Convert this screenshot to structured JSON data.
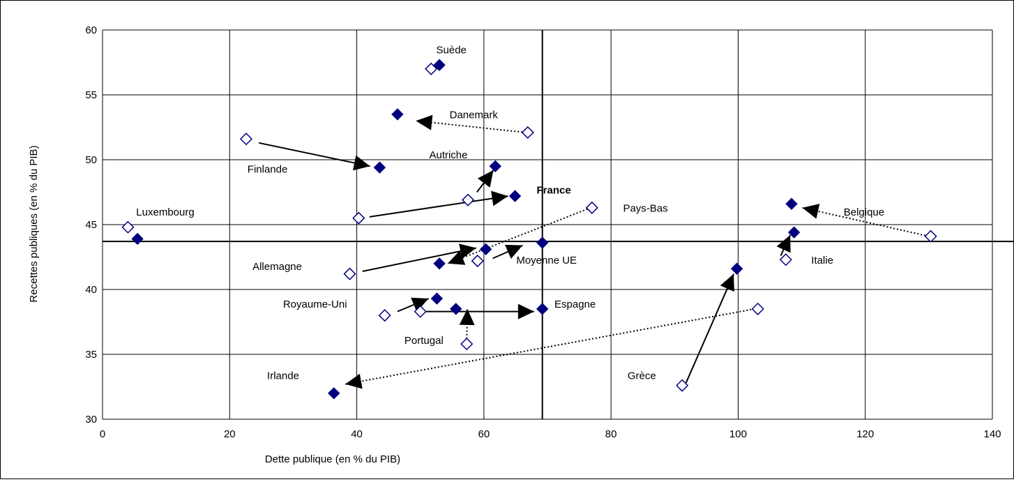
{
  "chart_data": {
    "type": "scatter",
    "title": "",
    "xlabel": "Dette publique (en % du PIB)",
    "ylabel": "Recettes publiques (en % du PIB)",
    "xlim": [
      0,
      140
    ],
    "ylim": [
      30,
      60
    ],
    "xticks": [
      0,
      20,
      40,
      60,
      80,
      100,
      120,
      140
    ],
    "yticks": [
      30,
      35,
      40,
      45,
      50,
      55,
      60
    ],
    "grid": true,
    "legend": "none",
    "reference_lines": {
      "x": 69.2,
      "y": 43.7
    },
    "marker_colors": {
      "filled": "#00007f",
      "open_fill": "#ffffff",
      "open_stroke": "#00007f"
    },
    "series": [
      {
        "marker": "open-diamond",
        "points": [
          {
            "x": 51.7,
            "y": 57.0
          },
          {
            "x": 66.9,
            "y": 52.1
          },
          {
            "x": 22.6,
            "y": 51.6
          },
          {
            "x": 57.5,
            "y": 46.9
          },
          {
            "x": 40.3,
            "y": 45.5
          },
          {
            "x": 77.0,
            "y": 46.3
          },
          {
            "x": 4.0,
            "y": 44.8
          },
          {
            "x": 130.3,
            "y": 44.1
          },
          {
            "x": 107.5,
            "y": 42.3
          },
          {
            "x": 38.9,
            "y": 41.2
          },
          {
            "x": 59.0,
            "y": 42.2
          },
          {
            "x": 50.0,
            "y": 38.3
          },
          {
            "x": 44.4,
            "y": 38.0
          },
          {
            "x": 57.3,
            "y": 35.8
          },
          {
            "x": 103.1,
            "y": 38.5
          },
          {
            "x": 91.2,
            "y": 32.6
          }
        ]
      },
      {
        "marker": "filled-diamond",
        "points": [
          {
            "x": 53.0,
            "y": 57.3
          },
          {
            "x": 46.4,
            "y": 53.5
          },
          {
            "x": 43.6,
            "y": 49.4
          },
          {
            "x": 61.8,
            "y": 49.5
          },
          {
            "x": 64.9,
            "y": 47.2
          },
          {
            "x": 5.5,
            "y": 43.9
          },
          {
            "x": 108.4,
            "y": 46.6
          },
          {
            "x": 108.8,
            "y": 44.4
          },
          {
            "x": 60.3,
            "y": 43.1
          },
          {
            "x": 53.0,
            "y": 42.0
          },
          {
            "x": 69.2,
            "y": 43.6
          },
          {
            "x": 52.6,
            "y": 39.3
          },
          {
            "x": 55.6,
            "y": 38.5
          },
          {
            "x": 69.2,
            "y": 38.5
          },
          {
            "x": 99.8,
            "y": 41.6
          },
          {
            "x": 36.4,
            "y": 32.0
          }
        ]
      }
    ],
    "arrows": [
      {
        "from": [
          66.6,
          52.1
        ],
        "to": [
          49.3,
          53.0
        ],
        "style": "dotted"
      },
      {
        "from": [
          24.6,
          51.3
        ],
        "to": [
          42.1,
          49.5
        ],
        "style": "solid"
      },
      {
        "from": [
          58.9,
          47.5
        ],
        "to": [
          61.5,
          49.2
        ],
        "style": "solid"
      },
      {
        "from": [
          42.0,
          45.6
        ],
        "to": [
          63.8,
          47.2
        ],
        "style": "solid"
      },
      {
        "from": [
          76.3,
          46.2
        ],
        "to": [
          54.3,
          42.0
        ],
        "style": "dotted"
      },
      {
        "from": [
          40.9,
          41.4
        ],
        "to": [
          58.8,
          43.2
        ],
        "style": "solid"
      },
      {
        "from": [
          61.4,
          42.4
        ],
        "to": [
          66.1,
          43.4
        ],
        "style": "solid"
      },
      {
        "from": [
          130.0,
          44.1
        ],
        "to": [
          110.1,
          46.3
        ],
        "style": "dotted"
      },
      {
        "from": [
          106.7,
          42.6
        ],
        "to": [
          108.2,
          44.2
        ],
        "style": "solid"
      },
      {
        "from": [
          46.4,
          38.3
        ],
        "to": [
          51.3,
          39.3
        ],
        "style": "solid"
      },
      {
        "from": [
          57.3,
          36.2
        ],
        "to": [
          57.4,
          38.5
        ],
        "style": "dotted"
      },
      {
        "from": [
          50.9,
          38.3
        ],
        "to": [
          67.9,
          38.3
        ],
        "style": "solid"
      },
      {
        "from": [
          102.6,
          38.5
        ],
        "to": [
          38.2,
          32.7
        ],
        "style": "dotted"
      },
      {
        "from": [
          91.8,
          32.8
        ],
        "to": [
          99.3,
          41.2
        ],
        "style": "solid"
      }
    ],
    "annotations": [
      {
        "text": "Suède",
        "x": 52.5,
        "y": 58.2,
        "bold": false
      },
      {
        "text": "Danemark",
        "x": 54.6,
        "y": 53.2,
        "bold": false
      },
      {
        "text": "Autriche",
        "x": 51.4,
        "y": 50.1,
        "bold": false
      },
      {
        "text": "Finlande",
        "x": 22.8,
        "y": 49.0,
        "bold": false
      },
      {
        "text": "France",
        "x": 68.3,
        "y": 47.4,
        "bold": true
      },
      {
        "text": "Pays-Bas",
        "x": 81.9,
        "y": 46.0,
        "bold": false
      },
      {
        "text": "Luxembourg",
        "x": 5.3,
        "y": 45.7,
        "bold": false
      },
      {
        "text": "Belgique",
        "x": 116.6,
        "y": 45.7,
        "bold": false
      },
      {
        "text": "Italie",
        "x": 111.5,
        "y": 42.0,
        "bold": false
      },
      {
        "text": "Moyenne UE",
        "x": 65.1,
        "y": 42.0,
        "bold": false
      },
      {
        "text": "Allemagne",
        "x": 23.6,
        "y": 41.5,
        "bold": false
      },
      {
        "text": "Royaume-Uni",
        "x": 28.4,
        "y": 38.6,
        "bold": false
      },
      {
        "text": "Espagne",
        "x": 71.1,
        "y": 38.6,
        "bold": false
      },
      {
        "text": "Portugal",
        "x": 47.5,
        "y": 35.8,
        "bold": false
      },
      {
        "text": "Irlande",
        "x": 25.9,
        "y": 33.1,
        "bold": false
      },
      {
        "text": "Grèce",
        "x": 82.6,
        "y": 33.1,
        "bold": false
      }
    ]
  }
}
